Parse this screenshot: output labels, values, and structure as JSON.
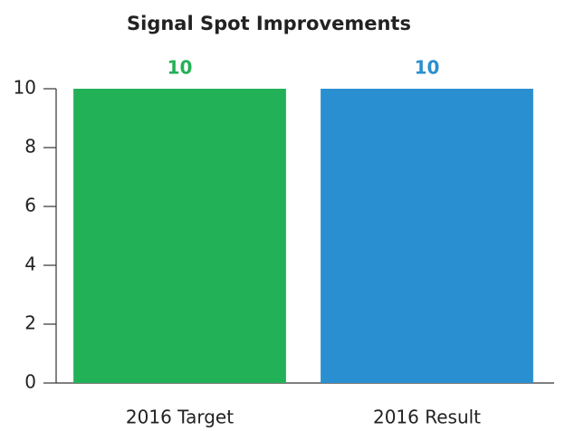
{
  "chart_data": {
    "type": "bar",
    "title": "Signal Spot Improvements",
    "categories": [
      "2016 Target",
      "2016 Result"
    ],
    "values": [
      10,
      10
    ],
    "colors": [
      "#23b157",
      "#2a8fd0"
    ],
    "ylim": [
      0,
      10
    ],
    "yticks": [
      0,
      2,
      4,
      6,
      8,
      10
    ],
    "grid": false
  }
}
